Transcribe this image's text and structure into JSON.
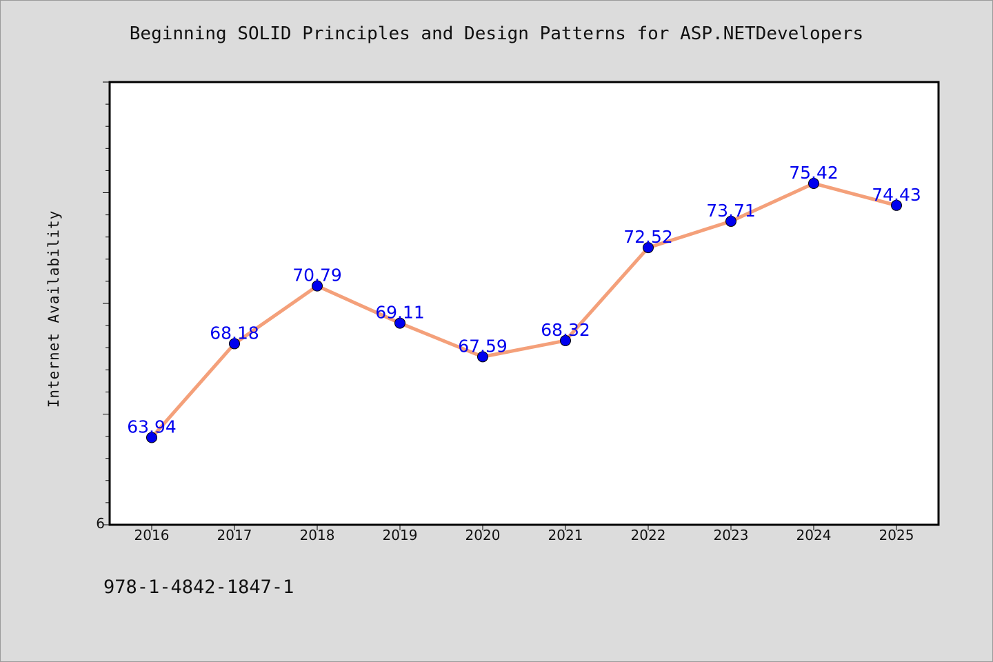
{
  "chart_data": {
    "type": "line",
    "title": "Beginning SOLID Principles and Design Patterns for ASP.NETDevelopers",
    "xlabel": "",
    "ylabel": "Internet Availability",
    "categories": [
      "2016",
      "2017",
      "2018",
      "2019",
      "2020",
      "2021",
      "2022",
      "2023",
      "2024",
      "2025"
    ],
    "series": [
      {
        "values": [
          63.94,
          68.18,
          70.79,
          69.11,
          67.59,
          68.32,
          72.52,
          73.71,
          75.42,
          74.43
        ],
        "labels": [
          "63.94",
          "68.18",
          "70.79",
          "69.11",
          "67.59",
          "68.32",
          "72.52",
          "73.71",
          "75.42",
          "74.43"
        ],
        "line_color": "#f4a07a",
        "marker_color": "#0000ee"
      }
    ],
    "y_tick_labels": [
      "6"
    ],
    "ylim": [
      60,
      80
    ],
    "grid": false,
    "legend": "none"
  },
  "footer": {
    "isbn": "978-1-4842-1847-1"
  }
}
